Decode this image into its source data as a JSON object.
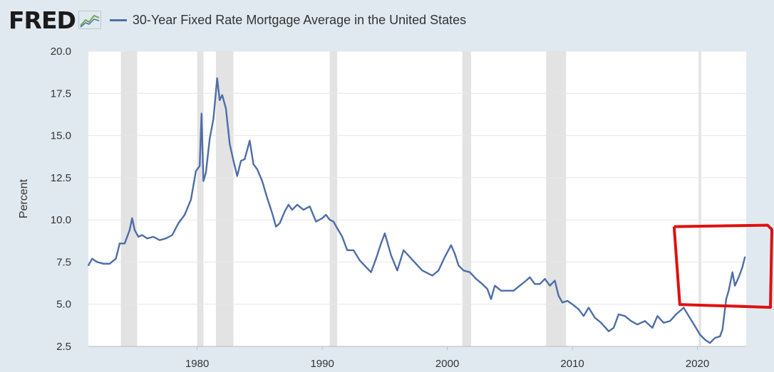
{
  "header": {
    "logo": "FRED",
    "logo_icon": "line-chart-icon",
    "legend_label": "30-Year Fixed Rate Mortgage Average in the United States"
  },
  "colors": {
    "series": "#4d6ea8",
    "background": "#e1e9f0",
    "plot": "#ffffff",
    "recession": "#e3e3e3",
    "annotation": "#e01010"
  },
  "chart_data": {
    "type": "line",
    "title": "30-Year Fixed Rate Mortgage Average in the United States",
    "xlabel": "",
    "ylabel": "Percent",
    "xlim": [
      1971.3,
      2023.9
    ],
    "ylim": [
      2.5,
      20.0
    ],
    "x_ticks": [
      "1980",
      "1990",
      "2000",
      "2010",
      "2020"
    ],
    "y_ticks": [
      "2.5",
      "5.0",
      "7.5",
      "10.0",
      "12.5",
      "15.0",
      "17.5",
      "20.0"
    ],
    "grid": "horizontal",
    "recessions": [
      [
        1973.9,
        1975.2
      ],
      [
        1980.0,
        1980.5
      ],
      [
        1981.5,
        1982.9
      ],
      [
        1990.6,
        1991.2
      ],
      [
        2001.2,
        2001.9
      ],
      [
        2007.9,
        2009.5
      ],
      [
        2020.1,
        2020.3
      ]
    ],
    "series": [
      {
        "name": "30-Year Fixed Rate Mortgage Average in the United States",
        "x": [
          1971.3,
          1971.6,
          1972.0,
          1972.5,
          1973.0,
          1973.5,
          1973.8,
          1974.2,
          1974.6,
          1974.8,
          1975.0,
          1975.3,
          1975.6,
          1976.0,
          1976.5,
          1977.0,
          1977.5,
          1978.0,
          1978.5,
          1979.0,
          1979.5,
          1979.9,
          1980.2,
          1980.35,
          1980.5,
          1980.7,
          1981.0,
          1981.3,
          1981.6,
          1981.8,
          1982.0,
          1982.3,
          1982.6,
          1982.9,
          1983.2,
          1983.5,
          1983.8,
          1984.2,
          1984.5,
          1984.8,
          1985.2,
          1985.6,
          1986.0,
          1986.3,
          1986.6,
          1987.0,
          1987.3,
          1987.6,
          1988.0,
          1988.5,
          1989.0,
          1989.5,
          1990.0,
          1990.3,
          1990.6,
          1990.9,
          1991.2,
          1991.6,
          1992.0,
          1992.5,
          1993.0,
          1993.5,
          1993.9,
          1994.3,
          1994.7,
          1995.0,
          1995.5,
          1996.0,
          1996.5,
          1997.0,
          1997.5,
          1998.0,
          1998.8,
          1999.3,
          1999.8,
          2000.3,
          2000.6,
          2000.9,
          2001.3,
          2001.8,
          2002.3,
          2002.8,
          2003.2,
          2003.5,
          2003.8,
          2004.3,
          2004.8,
          2005.3,
          2005.8,
          2006.3,
          2006.6,
          2007.0,
          2007.4,
          2007.8,
          2008.2,
          2008.6,
          2008.9,
          2009.2,
          2009.6,
          2010.0,
          2010.5,
          2010.9,
          2011.3,
          2011.8,
          2012.3,
          2012.9,
          2013.3,
          2013.7,
          2014.2,
          2014.7,
          2015.2,
          2015.8,
          2016.4,
          2016.8,
          2017.3,
          2017.8,
          2018.3,
          2018.9,
          2019.3,
          2019.8,
          2020.2,
          2020.6,
          2021.0,
          2021.4,
          2021.8,
          2022.0,
          2022.3,
          2022.5,
          2022.8,
          2023.0,
          2023.3,
          2023.6,
          2023.8
        ],
        "values": [
          7.3,
          7.7,
          7.5,
          7.4,
          7.4,
          7.7,
          8.6,
          8.6,
          9.4,
          10.1,
          9.4,
          9.0,
          9.1,
          8.9,
          9.0,
          8.8,
          8.9,
          9.1,
          9.8,
          10.3,
          11.2,
          12.9,
          13.2,
          16.3,
          12.3,
          12.8,
          14.8,
          16.0,
          18.4,
          17.1,
          17.4,
          16.6,
          14.5,
          13.5,
          12.6,
          13.5,
          13.6,
          14.7,
          13.3,
          13.0,
          12.3,
          11.3,
          10.4,
          9.6,
          9.8,
          10.5,
          10.9,
          10.6,
          10.9,
          10.6,
          10.8,
          9.9,
          10.1,
          10.3,
          10.0,
          9.9,
          9.5,
          9.0,
          8.2,
          8.2,
          7.6,
          7.2,
          6.9,
          7.7,
          8.6,
          9.2,
          7.9,
          7.0,
          8.2,
          7.8,
          7.4,
          7.0,
          6.7,
          7.0,
          7.8,
          8.5,
          8.0,
          7.3,
          7.0,
          6.9,
          6.5,
          6.2,
          5.9,
          5.3,
          6.1,
          5.8,
          5.8,
          5.8,
          6.1,
          6.4,
          6.6,
          6.2,
          6.2,
          6.5,
          6.1,
          6.4,
          5.5,
          5.1,
          5.2,
          5.0,
          4.7,
          4.3,
          4.8,
          4.2,
          3.9,
          3.4,
          3.6,
          4.4,
          4.3,
          4.0,
          3.8,
          4.0,
          3.6,
          4.3,
          3.9,
          4.0,
          4.4,
          4.8,
          4.3,
          3.7,
          3.2,
          2.9,
          2.7,
          3.0,
          3.1,
          3.5,
          5.3,
          5.8,
          6.9,
          6.1,
          6.6,
          7.2,
          7.8
        ]
      }
    ]
  },
  "annotation": {
    "type": "hand-drawn-rectangle",
    "x_range": [
      2020.3,
      2023.9
    ],
    "y_range": [
      4.9,
      9.6
    ]
  }
}
